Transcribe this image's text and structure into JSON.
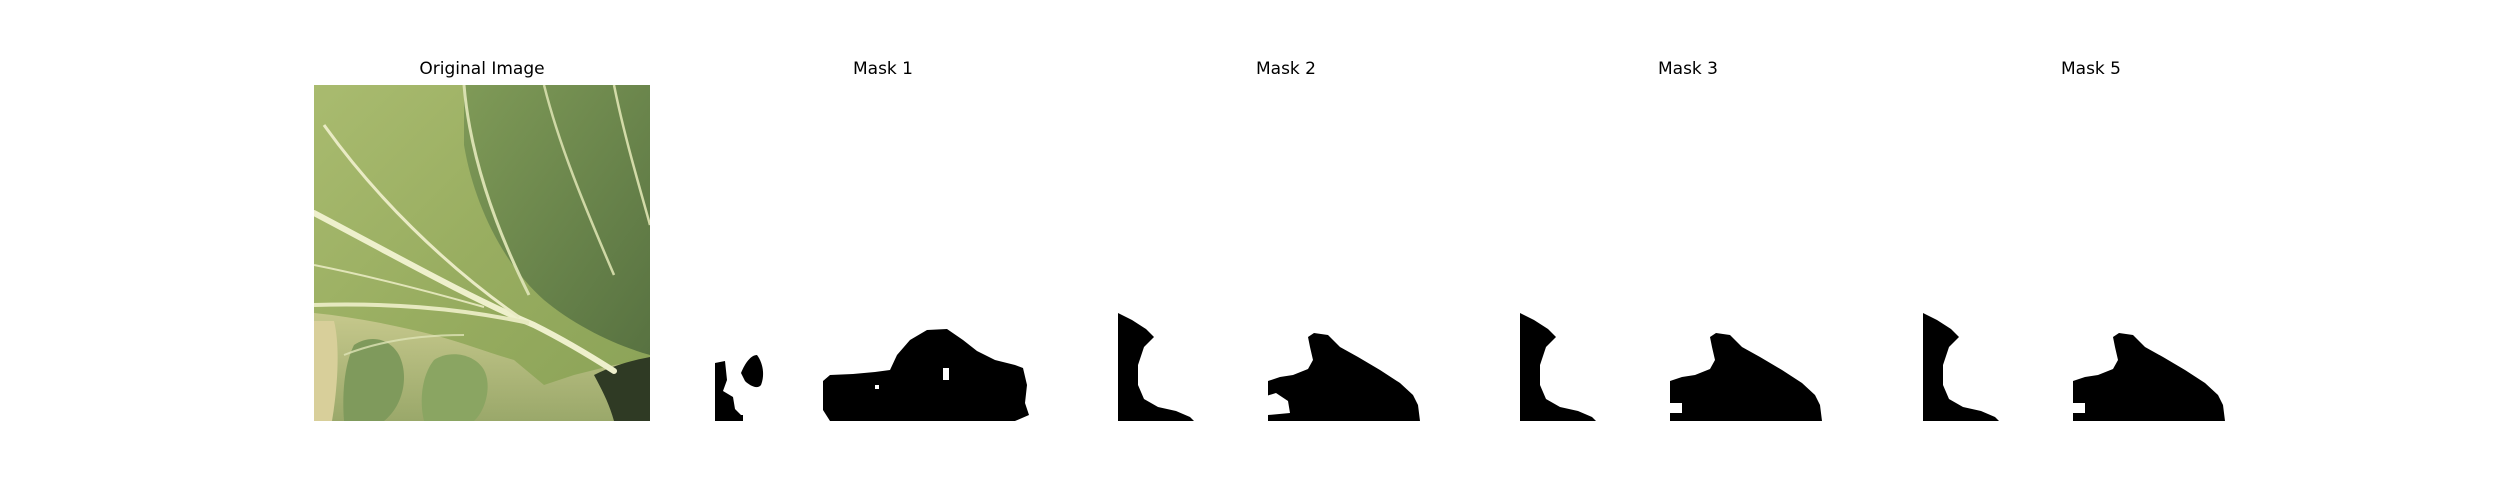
{
  "figure": {
    "panels": [
      {
        "title": "Original Image",
        "kind": "photo",
        "icon": "leaf-photo"
      },
      {
        "title": "Mask 1",
        "kind": "mask"
      },
      {
        "title": "Mask 2",
        "kind": "mask"
      },
      {
        "title": "Mask 3",
        "kind": "mask"
      },
      {
        "title": "Mask 5",
        "kind": "mask"
      }
    ]
  },
  "colors": {
    "background": "#ffffff",
    "mask_fill": "#000000",
    "leaf_light": "#a7b86a",
    "leaf_dark": "#6f8a4e",
    "vein": "#eef0cc"
  }
}
